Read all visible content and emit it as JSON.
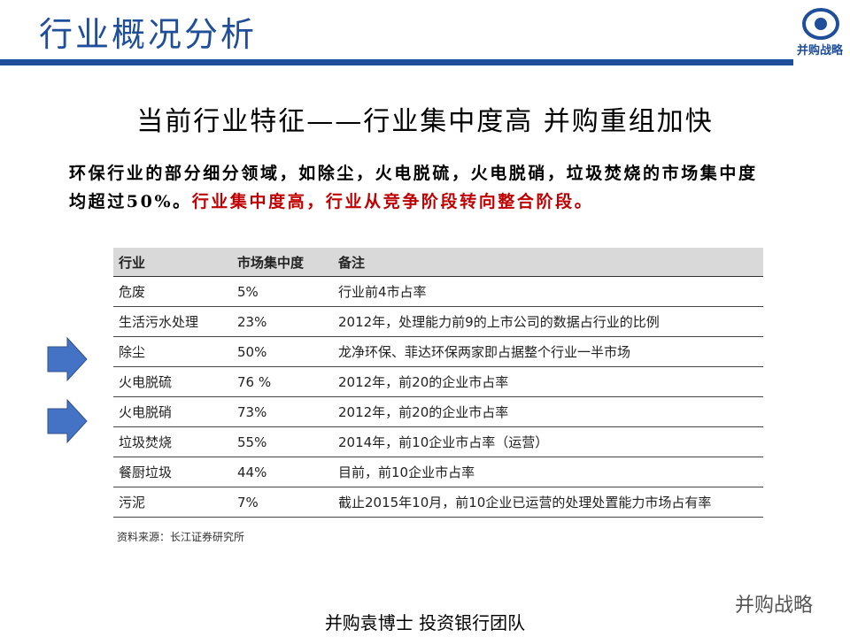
{
  "header": {
    "title": "行业概况分析",
    "logo_text": "并购战略"
  },
  "subtitle": "当前行业特征——行业集中度高 并购重组加快",
  "paragraph": {
    "text": "环保行业的部分细分领域，如除尘，火电脱硫，火电脱硝，垃圾焚烧的市场集中度均超过50%。",
    "highlight": "行业集中度高，行业从竞争阶段转向整合阶段。"
  },
  "table": {
    "headers": [
      "行业",
      "市场集中度",
      "备注"
    ],
    "rows": [
      [
        "危废",
        "5%",
        "行业前4市占率"
      ],
      [
        "生活污水处理",
        "23%",
        "2012年，处理能力前9的上市公司的数据占行业的比例"
      ],
      [
        "除尘",
        "50%",
        "龙净环保、菲达环保两家即占据整个行业一半市场"
      ],
      [
        "火电脱硫",
        "76 %",
        "2012年，前20的企业市占率"
      ],
      [
        "火电脱硝",
        "73%",
        "2012年，前20的企业市占率"
      ],
      [
        "垃圾焚烧",
        "55%",
        "2014年，前10企业市占率（运营）"
      ],
      [
        "餐厨垃圾",
        "44%",
        "目前，前10企业市占率"
      ],
      [
        "污泥",
        "7%",
        "截止2015年10月，前10企业已运营的处理处置能力市场占有率"
      ]
    ],
    "source": "资料来源：长江证券研究所"
  },
  "footer": "并购袁博士 投资银行团队",
  "watermark": "并购战略"
}
